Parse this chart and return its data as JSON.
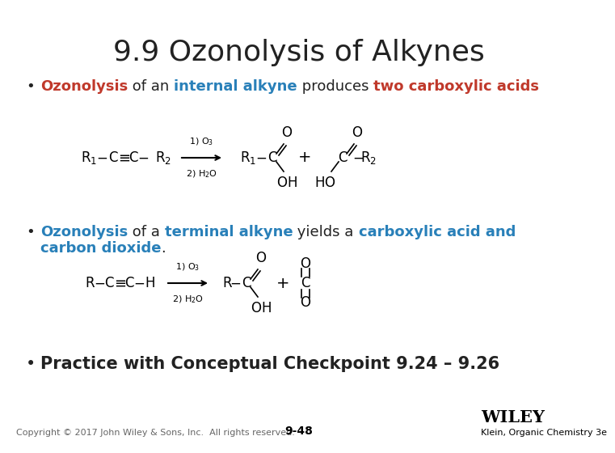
{
  "title": "9.9 Ozonolysis of Alkynes",
  "title_fontsize": 26,
  "title_color": "#222222",
  "bg_color": "#ffffff",
  "bullet1_parts": [
    {
      "text": "Ozonolysis",
      "color": "#c0392b",
      "bold": true
    },
    {
      "text": " of an ",
      "color": "#222222",
      "bold": false
    },
    {
      "text": "internal alkyne",
      "color": "#2980b9",
      "bold": true
    },
    {
      "text": " produces ",
      "color": "#222222",
      "bold": false
    },
    {
      "text": "two carboxylic acids",
      "color": "#c0392b",
      "bold": true
    }
  ],
  "bullet2_parts": [
    {
      "text": "Ozonolysis",
      "color": "#2980b9",
      "bold": true
    },
    {
      "text": " of a ",
      "color": "#222222",
      "bold": false
    },
    {
      "text": "terminal alkyne",
      "color": "#2980b9",
      "bold": true
    },
    {
      "text": " yields a ",
      "color": "#222222",
      "bold": false
    },
    {
      "text": "carboxylic acid and",
      "color": "#2980b9",
      "bold": true
    }
  ],
  "bullet2_line2": [
    {
      "text": "carbon dioxide",
      "color": "#2980b9",
      "bold": true
    },
    {
      "text": ".",
      "color": "#222222",
      "bold": false
    }
  ],
  "bullet3_parts": [
    {
      "text": "Practice with Conceptual Checkpoint 9.24 – 9.26",
      "color": "#222222",
      "bold": true
    }
  ],
  "footer_copyright": "Copyright © 2017 John Wiley & Sons, Inc.  All rights reserved.",
  "footer_page": "9-48",
  "footer_publisher": "WILEY",
  "footer_book": "Klein, Organic Chemistry 3e",
  "bullet_color": "#222222",
  "bullet_fontsize": 13,
  "chem_fontsize": 12,
  "footer_fontsize": 8
}
